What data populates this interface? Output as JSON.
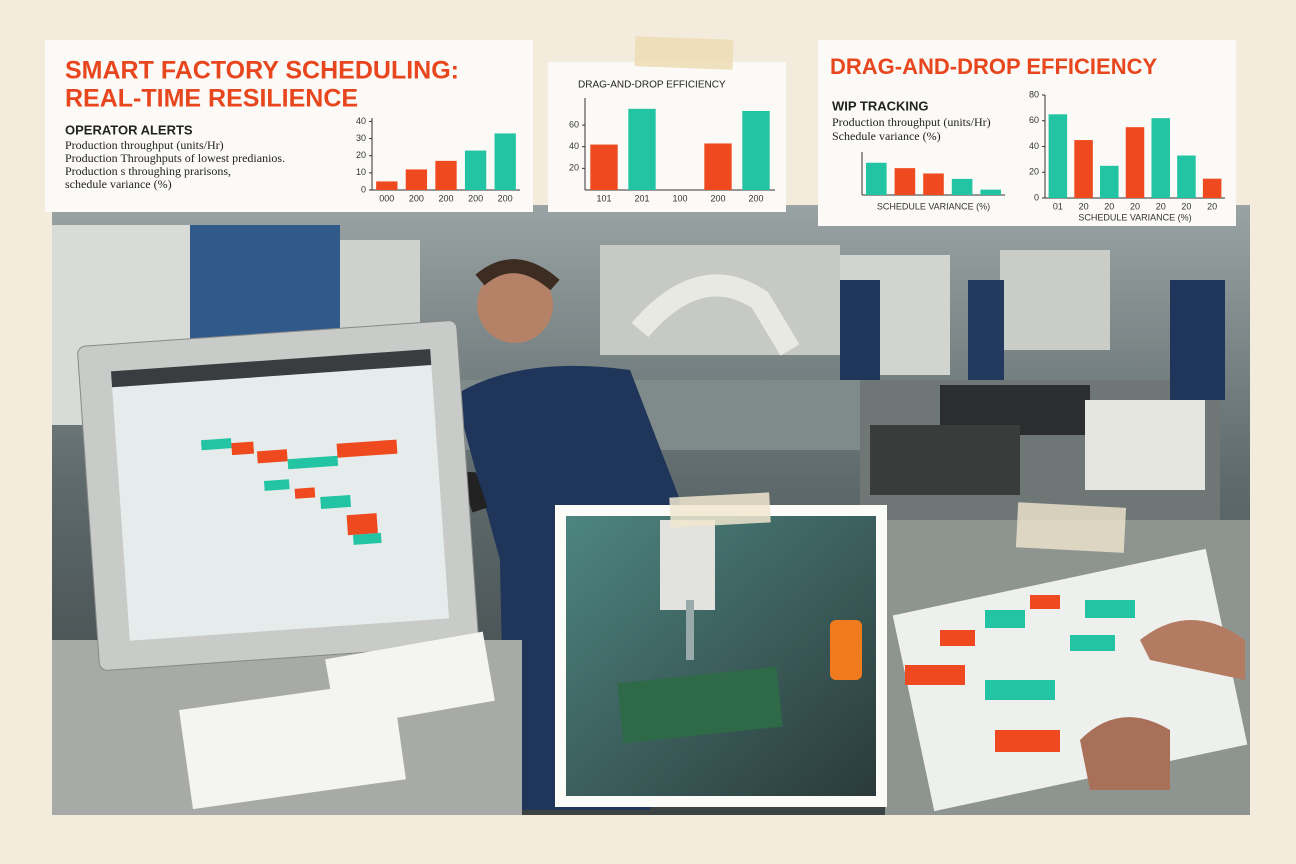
{
  "header": {
    "title": [
      "SMART FACTORY SCHEDULING:",
      "REAL-TIME RESILIENCE"
    ]
  },
  "alerts": {
    "heading": "OPERATOR ALERTS",
    "lines": [
      "Production throughput (units/Hr)",
      "Production Throughputs of lowest predianios.",
      "Production s throughing prarisons,",
      "schedule variance (%)"
    ]
  },
  "charts": [
    {
      "ylim": [
        0,
        42
      ],
      "yticks": [
        0,
        10,
        20,
        30,
        40
      ],
      "categories": [
        "000",
        "200",
        "200",
        "200",
        "200"
      ],
      "values": [
        5,
        12,
        17,
        23,
        33
      ],
      "colors": [
        "#ef4a1f",
        "#ef4a1f",
        "#ef4a1f",
        "#22c4a3",
        "#22c4a3"
      ]
    },
    {
      "title": "DRAG-AND-DROP EFFICIENCY",
      "ylim": [
        0,
        85
      ],
      "yticks": [
        20,
        40,
        60
      ],
      "categories": [
        "101",
        "201",
        "100",
        "200",
        "200"
      ],
      "values": [
        42,
        75,
        0,
        43,
        73
      ],
      "colors": [
        "#ef4a1f",
        "#22c4a3",
        "#ef4a1f",
        "#ef4a1f",
        "#22c4a3"
      ]
    },
    {
      "ylim": [
        0,
        40
      ],
      "yticks": [],
      "categories": [],
      "xlabel": "SCHEDULE VARIANCE (%)",
      "values": [
        30,
        25,
        20,
        15,
        5
      ],
      "colors": [
        "#22c4a3",
        "#ef4a1f",
        "#ef4a1f",
        "#22c4a3",
        "#22c4a3"
      ]
    },
    {
      "ylim": [
        0,
        80
      ],
      "yticks": [
        0,
        20,
        40,
        60,
        80
      ],
      "categories": [
        "01",
        "20",
        "20",
        "20",
        "20",
        "20",
        "20"
      ],
      "xlabel": "SCHEDULE VARIANCE (%)",
      "values": [
        65,
        45,
        25,
        55,
        62,
        33,
        15
      ],
      "colors": [
        "#22c4a3",
        "#ef4a1f",
        "#22c4a3",
        "#ef4a1f",
        "#22c4a3",
        "#22c4a3",
        "#ef4a1f"
      ]
    }
  ],
  "right_panel": {
    "title": "DRAG-AND-DROP EFFICIENCY",
    "heading": "WIP TRACKING",
    "lines": [
      "Production throughput (units/Hr)",
      "Schedule variance (%)"
    ]
  }
}
